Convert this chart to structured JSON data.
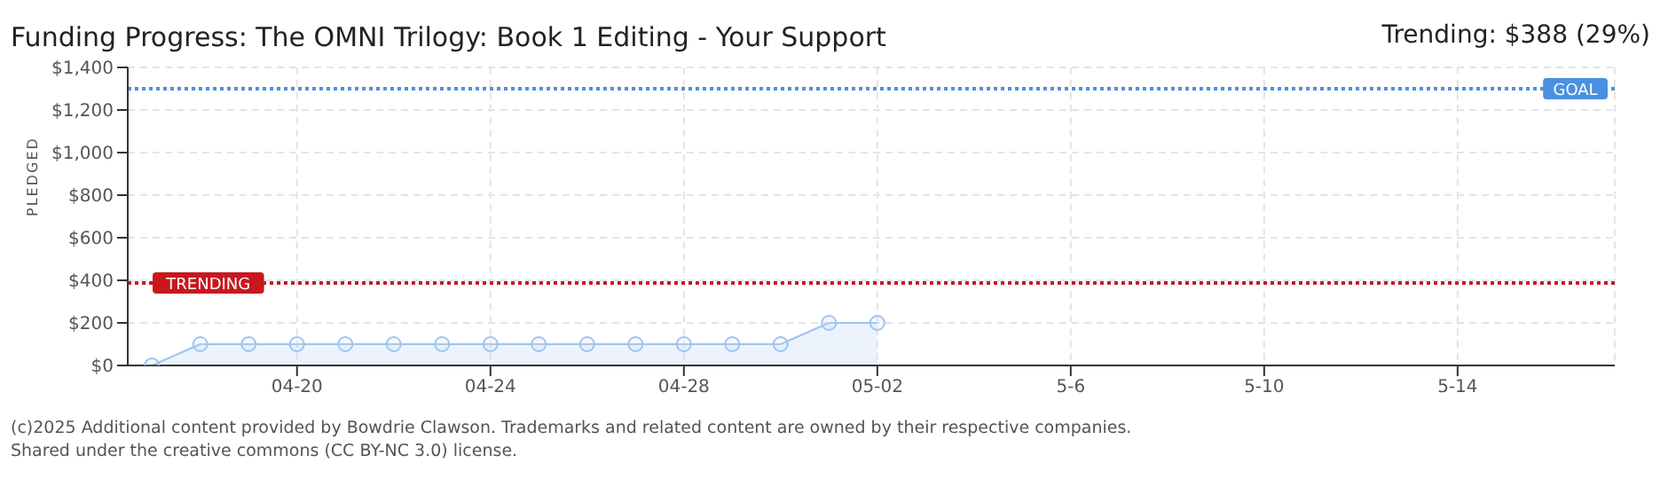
{
  "chart_data": {
    "type": "area",
    "title": "Funding Progress: The OMNI Trilogy: Book 1 Editing - Your Support",
    "ylabel": "PLEDGED",
    "x": [
      "--04-17",
      "--04-18",
      "--04-19",
      "--04-20",
      "--04-21",
      "--04-22",
      "--04-23",
      "--04-24",
      "--04-25",
      "--04-26",
      "--04-27",
      "--04-28",
      "--04-29",
      "--04-30",
      "--05-01",
      "--05-02"
    ],
    "series": [
      {
        "color": "#9ec4ee",
        "values": [
          0,
          100,
          100,
          100,
          100,
          100,
          100,
          100,
          100,
          100,
          100,
          100,
          100,
          100,
          200,
          200
        ]
      }
    ],
    "xlim": [
      "--04-16T12:00",
      "--05-17T06:00"
    ],
    "xticks": [
      {
        "value": "--04-20",
        "label": "04-20"
      },
      {
        "value": "--04-24",
        "label": "04-24"
      },
      {
        "value": "--04-28",
        "label": "04-28"
      },
      {
        "value": "--05-02",
        "label": "05-02"
      },
      {
        "value": "--05-06",
        "label": "5-6"
      },
      {
        "value": "--05-10",
        "label": "5-10"
      },
      {
        "value": "--05-14",
        "label": "5-14"
      }
    ],
    "ylim": [
      0,
      1400
    ],
    "yticks": [
      {
        "value": 0,
        "label": "$0"
      },
      {
        "value": 200,
        "label": "$200"
      },
      {
        "value": 400,
        "label": "$400"
      },
      {
        "value": 600,
        "label": "$600"
      },
      {
        "value": 800,
        "label": "$800"
      },
      {
        "value": 1000,
        "label": "$1,000"
      },
      {
        "value": 1200,
        "label": "$1,200"
      },
      {
        "value": 1400,
        "label": "$1,400"
      }
    ],
    "ref_lines": [
      {
        "axis": "y",
        "value": 1300,
        "label": "GOAL",
        "color": "#4a90e2",
        "line_style": "dotted"
      },
      {
        "axis": "y",
        "value": 388,
        "label": "TRENDING",
        "color": "#c8181e",
        "line_style": "dotted"
      }
    ],
    "annotations": [
      "Trending: $388 (29%)",
      "(c)2025 Additional content provided by Bowdrie Clawson. Trademarks and related content are owned by their respective companies.",
      "Shared under the creative commons (CC BY-NC 3.0) license."
    ],
    "grid": true,
    "marker": "circle",
    "line_style": "solid"
  }
}
